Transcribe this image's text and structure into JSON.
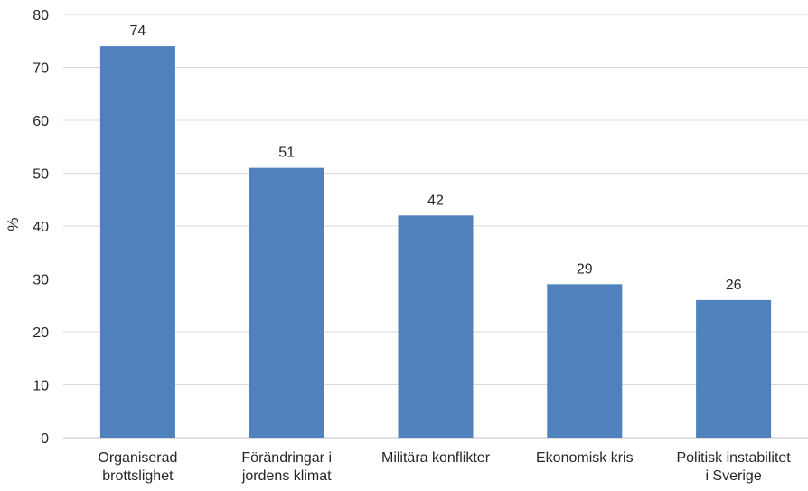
{
  "chart_data": {
    "type": "bar",
    "title": "",
    "xlabel": "",
    "ylabel": "%",
    "ylim": [
      0,
      80
    ],
    "yticks": [
      0,
      10,
      20,
      30,
      40,
      50,
      60,
      70,
      80
    ],
    "grid": true,
    "categories": [
      [
        "Organiserad",
        "brottslighet"
      ],
      [
        "Förändringar i",
        "jordens klimat"
      ],
      [
        "Militära konflikter"
      ],
      [
        "Ekonomisk kris"
      ],
      [
        "Politisk instabilitet",
        "i Sverige"
      ]
    ],
    "values": [
      74,
      51,
      42,
      29,
      26
    ],
    "data_labels": [
      "74",
      "51",
      "42",
      "29",
      "26"
    ],
    "colors": {
      "bar": "#4f81bd",
      "grid": "#d9d9d9",
      "text": "#262626"
    }
  }
}
